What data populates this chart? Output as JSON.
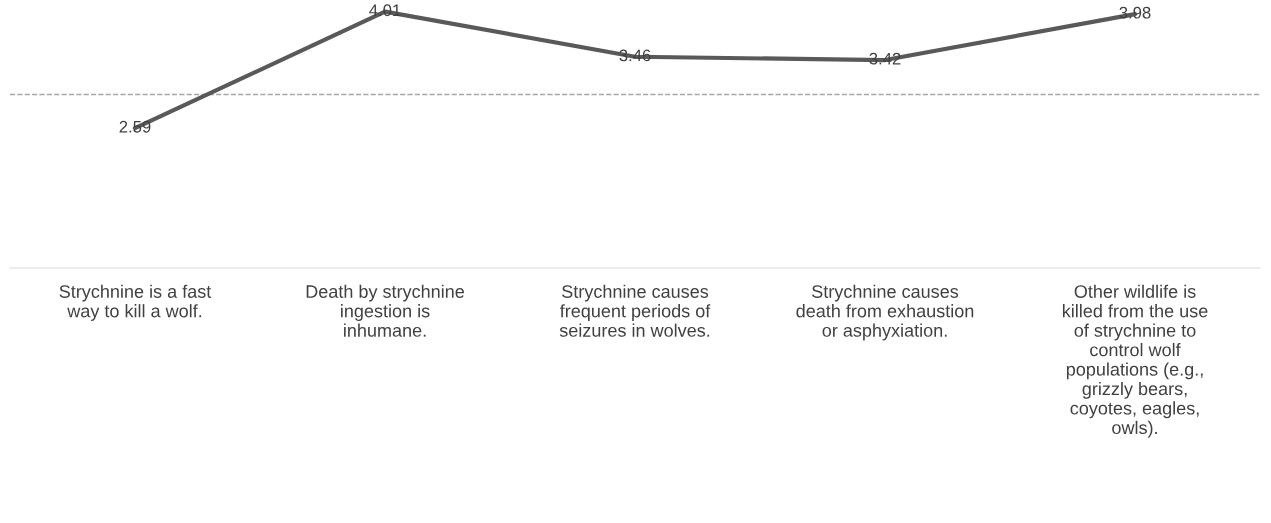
{
  "chart_data": {
    "type": "line",
    "categories": [
      "Strychnine is a fast way to kill a wolf.",
      "Death by strychnine ingestion is inhumane.",
      "Strychnine causes frequent periods of seizures in wolves.",
      "Strychnine causes death from exhaustion or asphyxiation.",
      "Other wildlife is killed from the use of strychnine to control wolf populations (e.g., grizzly bears, coyotes, eagles, owls)."
    ],
    "series": [
      {
        "color": "#595959",
        "values": [
          2.59,
          4.01,
          3.46,
          3.42,
          3.98
        ]
      }
    ],
    "data_labels": true,
    "ref_lines": [
      {
        "axis": "y",
        "value": 3,
        "color": "#a6a6a6",
        "line_style": "dashed"
      }
    ],
    "grid": false,
    "legend": false,
    "marker": "none",
    "line_style": "solid",
    "tick_labels": "x"
  }
}
